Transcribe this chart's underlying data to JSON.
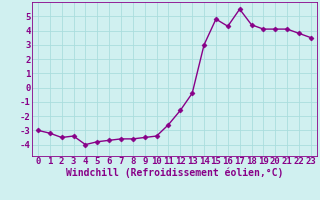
{
  "x": [
    0,
    1,
    2,
    3,
    4,
    5,
    6,
    7,
    8,
    9,
    10,
    11,
    12,
    13,
    14,
    15,
    16,
    17,
    18,
    19,
    20,
    21,
    22,
    23
  ],
  "y": [
    -3.0,
    -3.2,
    -3.5,
    -3.4,
    -4.0,
    -3.8,
    -3.7,
    -3.6,
    -3.6,
    -3.5,
    -3.4,
    -2.6,
    -1.6,
    -0.4,
    3.0,
    4.8,
    4.3,
    5.5,
    4.4,
    4.1,
    4.1,
    4.1,
    3.8,
    3.5
  ],
  "line_color": "#880088",
  "marker": "D",
  "marker_size": 2.5,
  "linewidth": 1.0,
  "bg_color": "#d0f0f0",
  "grid_color": "#aadddd",
  "xlabel": "Windchill (Refroidissement éolien,°C)",
  "xlim": [
    -0.5,
    23.5
  ],
  "ylim": [
    -4.8,
    6.0
  ],
  "xticks": [
    0,
    1,
    2,
    3,
    4,
    5,
    6,
    7,
    8,
    9,
    10,
    11,
    12,
    13,
    14,
    15,
    16,
    17,
    18,
    19,
    20,
    21,
    22,
    23
  ],
  "yticks": [
    -4,
    -3,
    -2,
    -1,
    0,
    1,
    2,
    3,
    4,
    5
  ],
  "xlabel_fontsize": 7.0,
  "tick_fontsize": 6.5
}
